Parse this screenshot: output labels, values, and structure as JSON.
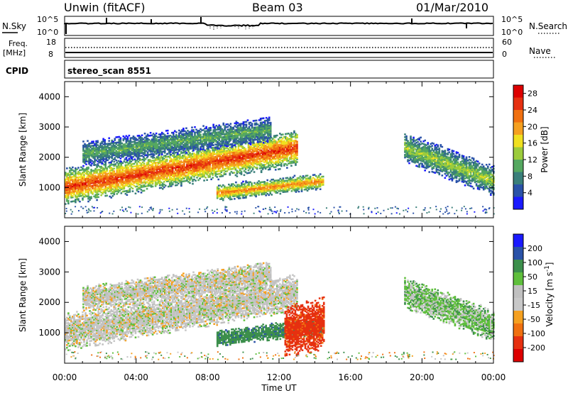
{
  "header": {
    "title": "Unwin (fitACF)",
    "beam": "Beam 03",
    "date": "01/Mar/2010"
  },
  "strip_labels": {
    "nsky": "N.Sky",
    "nsearch": "N.Search",
    "freq": "Freq.",
    "freq_unit": "[MHz]",
    "nave": "Nave",
    "cpid": "CPID",
    "cpid_value": "stereo_scan 8551",
    "nsky_ticks": [
      "10^5",
      "10^0"
    ],
    "nsearch_ticks": [
      "10^5",
      "10^0"
    ],
    "freq_ticks": [
      "18",
      "8"
    ],
    "nave_ticks": [
      "60",
      "0"
    ]
  },
  "colors": {
    "power_scale": [
      "#1a1aff",
      "#2a52a8",
      "#3a7f7a",
      "#55a860",
      "#9ccc3c",
      "#f0e020",
      "#f5a020",
      "#f07010",
      "#e63010",
      "#dd0000"
    ],
    "velocity_scale": [
      "#1a1aff",
      "#2a52a8",
      "#3c8f4c",
      "#5fbf3c",
      "#c0c0c0",
      "#c8c8c8",
      "#f5a020",
      "#f07010",
      "#e63010",
      "#dd0000"
    ]
  },
  "chart_data": [
    {
      "type": "heatmap",
      "title": "",
      "xlabel": "Time UT",
      "ylabel": "Slant Range [km]",
      "xlim": [
        "00:00",
        "00:00"
      ],
      "x_ticks": [
        "00:00",
        "04:00",
        "08:00",
        "12:00",
        "16:00",
        "20:00",
        "00:00"
      ],
      "ylim": [
        0,
        4500
      ],
      "y_ticks": [
        1000,
        2000,
        3000,
        4000
      ],
      "colorbar": {
        "label": "Power [dB]",
        "ticks": [
          4,
          8,
          12,
          16,
          20,
          24,
          28
        ],
        "range": [
          0,
          30
        ]
      },
      "bands": [
        {
          "t0": 0.0,
          "t1": 13.0,
          "r0_start": 1000,
          "r0_end": 2300,
          "width": 650,
          "peak": 26
        },
        {
          "t0": 1.0,
          "t1": 11.5,
          "r0_start": 2100,
          "r0_end": 2900,
          "width": 450,
          "peak": 11
        },
        {
          "t0": 8.5,
          "t1": 14.5,
          "r0_start": 800,
          "r0_end": 1200,
          "width": 300,
          "peak": 22
        },
        {
          "t0": 19.0,
          "t1": 24.0,
          "r0_start": 2300,
          "r0_end": 1200,
          "width": 550,
          "peak": 14
        }
      ]
    },
    {
      "type": "heatmap",
      "title": "",
      "xlabel": "Time UT",
      "ylabel": "Slant Range [km]",
      "xlim": [
        "00:00",
        "00:00"
      ],
      "x_ticks": [
        "00:00",
        "04:00",
        "08:00",
        "12:00",
        "16:00",
        "20:00",
        "00:00"
      ],
      "ylim": [
        0,
        4500
      ],
      "y_ticks": [
        1000,
        2000,
        3000,
        4000
      ],
      "colorbar": {
        "label": "Velocity [m s^-1]",
        "ticks": [
          "200",
          "100",
          "50",
          "15",
          "-15",
          "-50",
          "-100",
          "-200"
        ]
      },
      "bands": [
        {
          "t0": 0.0,
          "t1": 13.0,
          "r0_start": 1000,
          "r0_end": 2300,
          "width": 650,
          "velocity": 0
        },
        {
          "t0": 1.0,
          "t1": 11.5,
          "r0_start": 2100,
          "r0_end": 2900,
          "width": 450,
          "velocity": 0
        },
        {
          "t0": 8.5,
          "t1": 14.5,
          "r0_start": 800,
          "r0_end": 1200,
          "width": 300,
          "velocity": 60
        },
        {
          "t0": 12.3,
          "t1": 14.5,
          "r0_start": 1000,
          "r0_end": 1300,
          "width": 900,
          "velocity": -90
        },
        {
          "t0": 19.0,
          "t1": 24.0,
          "r0_start": 2300,
          "r0_end": 1200,
          "width": 550,
          "velocity": 20
        }
      ]
    }
  ]
}
